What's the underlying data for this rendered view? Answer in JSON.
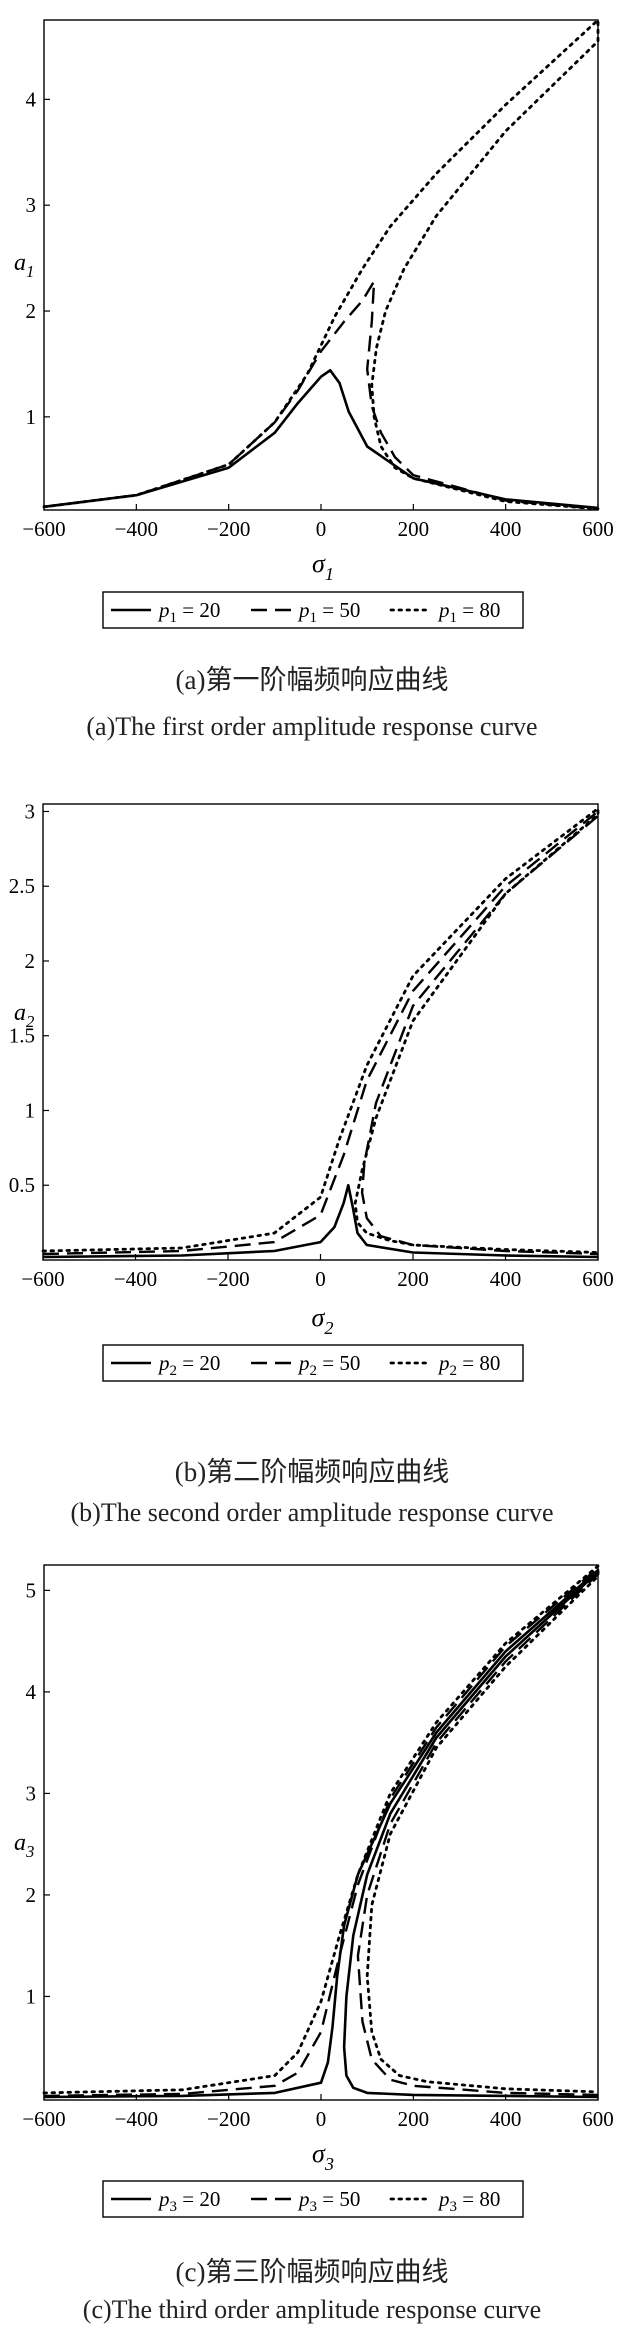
{
  "chart_data": [
    {
      "type": "line",
      "panel": "a",
      "xlabel": "σ",
      "xlabel_sub": "1",
      "ylabel": "a",
      "ylabel_sub": "1",
      "xlim": [
        -600,
        600
      ],
      "ylim": [
        0.12,
        4.75
      ],
      "xticks": [
        "-600",
        "-400",
        "-200",
        "0",
        "200",
        "400",
        "600"
      ],
      "yticks": [
        "1",
        "2",
        "3",
        "4"
      ],
      "ytick_values": [
        1,
        2,
        3,
        4
      ],
      "legend": [
        {
          "sym": "p",
          "sub": "1",
          "val": "= 20",
          "style": "solid"
        },
        {
          "sym": "p",
          "sub": "1",
          "val": "= 50",
          "style": "dash"
        },
        {
          "sym": "p",
          "sub": "1",
          "val": "= 80",
          "style": "dot"
        }
      ],
      "series": [
        {
          "style": "solid",
          "x": [
            -600,
            -400,
            -200,
            -100,
            -50,
            0,
            20,
            40,
            60,
            100,
            200,
            400,
            600
          ],
          "y": [
            0.15,
            0.26,
            0.52,
            0.85,
            1.13,
            1.38,
            1.44,
            1.32,
            1.05,
            0.72,
            0.42,
            0.22,
            0.14
          ]
        },
        {
          "style": "dash",
          "x": [
            -600,
            -400,
            -200,
            -100,
            -50,
            0,
            50,
            90,
            115,
            110,
            100,
            110,
            130,
            160,
            200,
            400,
            600
          ],
          "y": [
            0.15,
            0.26,
            0.55,
            0.95,
            1.25,
            1.62,
            1.9,
            2.1,
            2.28,
            1.9,
            1.45,
            1.1,
            0.85,
            0.62,
            0.45,
            0.21,
            0.13
          ]
        },
        {
          "style": "dot",
          "x": [
            -600,
            -400,
            -200,
            -100,
            -30,
            30,
            90,
            150,
            250,
            400,
            600,
            600,
            400,
            250,
            180,
            140,
            120,
            110,
            115,
            130,
            160,
            200,
            400,
            600
          ],
          "y": [
            0.15,
            0.26,
            0.55,
            0.95,
            1.4,
            1.95,
            2.4,
            2.8,
            3.3,
            3.95,
            4.75,
            4.55,
            3.7,
            2.9,
            2.4,
            2.0,
            1.65,
            1.3,
            1.0,
            0.72,
            0.52,
            0.42,
            0.2,
            0.13
          ]
        }
      ]
    },
    {
      "type": "line",
      "panel": "b",
      "xlabel": "σ",
      "xlabel_sub": "2",
      "ylabel": "a",
      "ylabel_sub": "2",
      "xlim": [
        -600,
        600
      ],
      "ylim": [
        0,
        3.05
      ],
      "xticks": [
        "-600",
        "-400",
        "-200",
        "0",
        "200",
        "400",
        "600"
      ],
      "yticks": [
        "0.5",
        "1",
        "1.5",
        "2",
        "2.5",
        "3"
      ],
      "ytick_values": [
        0.5,
        1,
        1.5,
        2,
        2.5,
        3
      ],
      "legend": [
        {
          "sym": "p",
          "sub": "2",
          "val": "= 20",
          "style": "solid"
        },
        {
          "sym": "p",
          "sub": "2",
          "val": "= 50",
          "style": "dash"
        },
        {
          "sym": "p",
          "sub": "2",
          "val": "= 80",
          "style": "dot"
        }
      ],
      "series": [
        {
          "style": "solid",
          "x": [
            -600,
            -300,
            -100,
            0,
            30,
            50,
            60,
            70,
            80,
            100,
            200,
            400,
            600
          ],
          "y": [
            0.02,
            0.03,
            0.06,
            0.12,
            0.22,
            0.38,
            0.5,
            0.35,
            0.18,
            0.1,
            0.05,
            0.03,
            0.02
          ]
        },
        {
          "style": "dash",
          "x": [
            -600,
            -300,
            -100,
            0,
            50,
            100,
            200,
            400,
            600,
            600,
            400,
            200,
            120,
            95,
            90,
            100,
            130,
            200,
            400,
            600
          ],
          "y": [
            0.04,
            0.06,
            0.12,
            0.3,
            0.7,
            1.2,
            1.8,
            2.5,
            3.0,
            2.97,
            2.45,
            1.7,
            1.05,
            0.65,
            0.45,
            0.28,
            0.16,
            0.1,
            0.06,
            0.04
          ]
        },
        {
          "style": "dot",
          "x": [
            -600,
            -300,
            -100,
            0,
            40,
            100,
            200,
            400,
            600,
            600,
            400,
            200,
            120,
            90,
            75,
            80,
            100,
            150,
            200,
            400,
            600
          ],
          "y": [
            0.06,
            0.08,
            0.18,
            0.42,
            0.8,
            1.3,
            1.9,
            2.55,
            3.02,
            2.98,
            2.45,
            1.6,
            0.95,
            0.6,
            0.38,
            0.25,
            0.18,
            0.13,
            0.1,
            0.07,
            0.05
          ]
        }
      ]
    },
    {
      "type": "line",
      "panel": "c",
      "xlabel": "σ",
      "xlabel_sub": "3",
      "ylabel": "a",
      "ylabel_sub": "3",
      "xlim": [
        -600,
        600
      ],
      "ylim": [
        -0.02,
        5.25
      ],
      "xticks": [
        "-600",
        "-400",
        "-200",
        "0",
        "200",
        "400",
        "600"
      ],
      "yticks": [
        "1",
        "2",
        "3",
        "4",
        "5"
      ],
      "ytick_values": [
        1,
        2,
        3,
        4,
        5
      ],
      "legend": [
        {
          "sym": "p",
          "sub": "3",
          "val": "= 20",
          "style": "solid"
        },
        {
          "sym": "p",
          "sub": "3",
          "val": "= 50",
          "style": "dash"
        },
        {
          "sym": "p",
          "sub": "3",
          "val": "= 80",
          "style": "dot"
        }
      ],
      "series": [
        {
          "style": "solid",
          "x": [
            -600,
            -300,
            -100,
            0,
            15,
            25,
            35,
            50,
            80,
            150,
            250,
            400,
            600,
            600,
            400,
            250,
            150,
            100,
            70,
            55,
            50,
            55,
            70,
            100,
            200,
            400,
            600
          ],
          "y": [
            0.01,
            0.02,
            0.05,
            0.15,
            0.35,
            0.7,
            1.2,
            1.7,
            2.2,
            2.9,
            3.6,
            4.4,
            5.2,
            5.18,
            4.35,
            3.55,
            2.8,
            2.2,
            1.6,
            1.0,
            0.5,
            0.22,
            0.1,
            0.05,
            0.03,
            0.02,
            0.01
          ]
        },
        {
          "style": "dash",
          "x": [
            -600,
            -300,
            -100,
            -50,
            0,
            40,
            80,
            150,
            250,
            400,
            600,
            600,
            400,
            250,
            150,
            100,
            80,
            90,
            110,
            150,
            200,
            400,
            600
          ],
          "y": [
            0.02,
            0.04,
            0.12,
            0.25,
            0.65,
            1.4,
            2.1,
            2.95,
            3.65,
            4.45,
            5.22,
            5.16,
            4.3,
            3.5,
            2.7,
            2.0,
            1.4,
            0.75,
            0.38,
            0.18,
            0.12,
            0.05,
            0.03
          ]
        },
        {
          "style": "dot",
          "x": [
            -600,
            -300,
            -100,
            -50,
            0,
            40,
            80,
            150,
            250,
            400,
            600,
            600,
            400,
            250,
            150,
            110,
            100,
            110,
            130,
            170,
            230,
            400,
            600
          ],
          "y": [
            0.05,
            0.08,
            0.22,
            0.45,
            0.95,
            1.6,
            2.2,
            3.0,
            3.7,
            4.48,
            5.24,
            5.14,
            4.25,
            3.45,
            2.6,
            1.9,
            1.2,
            0.65,
            0.38,
            0.22,
            0.16,
            0.09,
            0.06
          ]
        }
      ]
    }
  ],
  "captions": [
    {
      "cn": "(a)第一阶幅频响应曲线",
      "en": "(a)The first order amplitude response curve"
    },
    {
      "cn": "(b)第二阶幅频响应曲线",
      "en": "(b)The second order amplitude response curve"
    },
    {
      "cn": "(c)第三阶幅频响应曲线",
      "en": "(c)The third order amplitude response curve"
    }
  ]
}
